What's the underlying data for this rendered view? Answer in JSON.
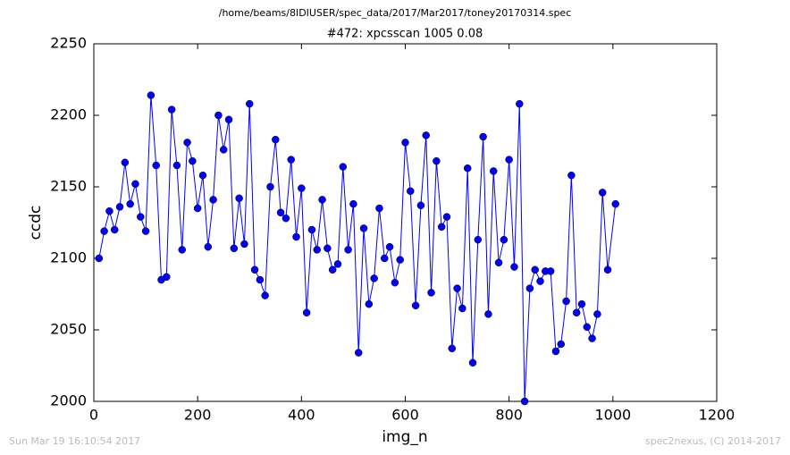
{
  "chart_data": {
    "type": "line",
    "suptitle": "/home/beams/8IDIUSER/spec_data/2017/Mar2017/toney20170314.spec",
    "title": "#472: xpcsscan 1005 0.08",
    "x_label": "img_n",
    "y_label": "ccdc",
    "footer_left": "Sun Mar 19 16:10:54 2017",
    "footer_right": "spec2nexus, (C) 2014-2017",
    "x": [
      10,
      20,
      30,
      40,
      50,
      60,
      70,
      80,
      90,
      100,
      110,
      120,
      130,
      140,
      150,
      160,
      170,
      180,
      190,
      200,
      210,
      220,
      230,
      240,
      250,
      260,
      270,
      280,
      290,
      300,
      310,
      320,
      330,
      340,
      350,
      360,
      370,
      380,
      390,
      400,
      410,
      420,
      430,
      440,
      450,
      460,
      470,
      480,
      490,
      500,
      510,
      520,
      530,
      540,
      550,
      560,
      570,
      580,
      590,
      600,
      610,
      620,
      630,
      640,
      650,
      660,
      670,
      680,
      690,
      700,
      710,
      720,
      730,
      740,
      750,
      760,
      770,
      780,
      790,
      800,
      810,
      820,
      830,
      840,
      850,
      860,
      870,
      880,
      890,
      900,
      910,
      920,
      930,
      940,
      950,
      960,
      970,
      980,
      990,
      1005
    ],
    "series": [
      {
        "name": "ccdc",
        "color": "#0000ff",
        "values": [
          2100,
          2119,
          2133,
          2120,
          2136,
          2167,
          2138,
          2152,
          2129,
          2119,
          2214,
          2165,
          2085,
          2087,
          2204,
          2165,
          2106,
          2181,
          2168,
          2135,
          2158,
          2108,
          2141,
          2200,
          2176,
          2197,
          2107,
          2142,
          2110,
          2208,
          2092,
          2085,
          2074,
          2150,
          2183,
          2132,
          2128,
          2169,
          2115,
          2149,
          2062,
          2120,
          2106,
          2141,
          2107,
          2092,
          2096,
          2164,
          2106,
          2138,
          2034,
          2121,
          2068,
          2086,
          2135,
          2100,
          2108,
          2083,
          2099,
          2181,
          2147,
          2067,
          2137,
          2186,
          2076,
          2168,
          2122,
          2129,
          2037,
          2079,
          2065,
          2163,
          2027,
          2113,
          2185,
          2061,
          2161,
          2097,
          2113,
          2169,
          2094,
          2208,
          2000,
          2079,
          2092,
          2084,
          2091,
          2091,
          2035,
          2040,
          2070,
          2158,
          2062,
          2068,
          2052,
          2044,
          2061,
          2146,
          2092,
          2138
        ]
      }
    ],
    "xlim": [
      0,
      1200
    ],
    "xticks": [
      0,
      200,
      400,
      600,
      800,
      1000,
      1200
    ],
    "ylim": [
      2000,
      2250
    ],
    "yticks": [
      2000,
      2050,
      2100,
      2150,
      2200,
      2250
    ]
  }
}
